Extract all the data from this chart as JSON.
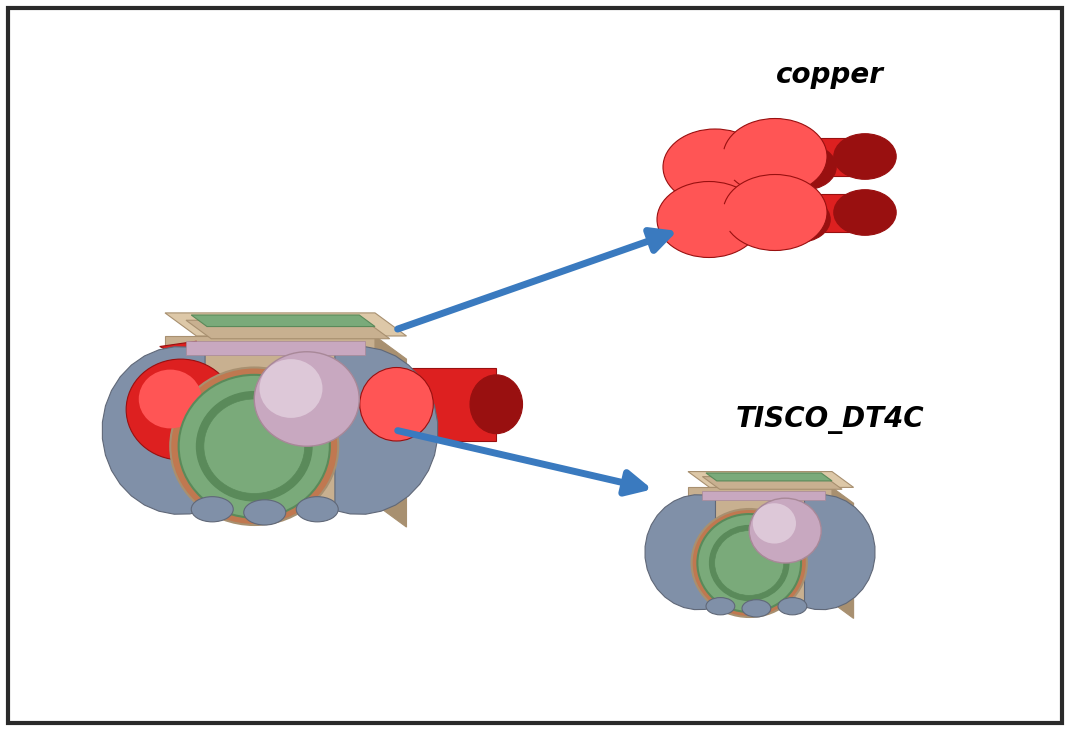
{
  "background_color": "#ffffff",
  "border_color": "#2a2a2a",
  "border_linewidth": 3,
  "title_copper": "copper",
  "title_tisco": "TISCO_DT4C",
  "label_fontsize": 20,
  "label_style": "italic",
  "label_weight": "bold",
  "arrow_color": "#3a7abf",
  "body_color_tan": "#c8b090",
  "body_color_tan_dark": "#a89070",
  "body_color_tan_light": "#ddc8a8",
  "body_color_gray": "#8090a8",
  "body_color_gray_dark": "#606878",
  "body_color_gray_light": "#a0b0c8",
  "body_color_green": "#7aaa7a",
  "body_color_green_dark": "#5a8a5a",
  "body_color_red": "#dd2020",
  "body_color_red_dark": "#991010",
  "body_color_red_light": "#ff5555",
  "body_color_pink": "#c8a8c0",
  "body_color_pink_dark": "#a88898",
  "body_color_copper_ring": "#c07850"
}
